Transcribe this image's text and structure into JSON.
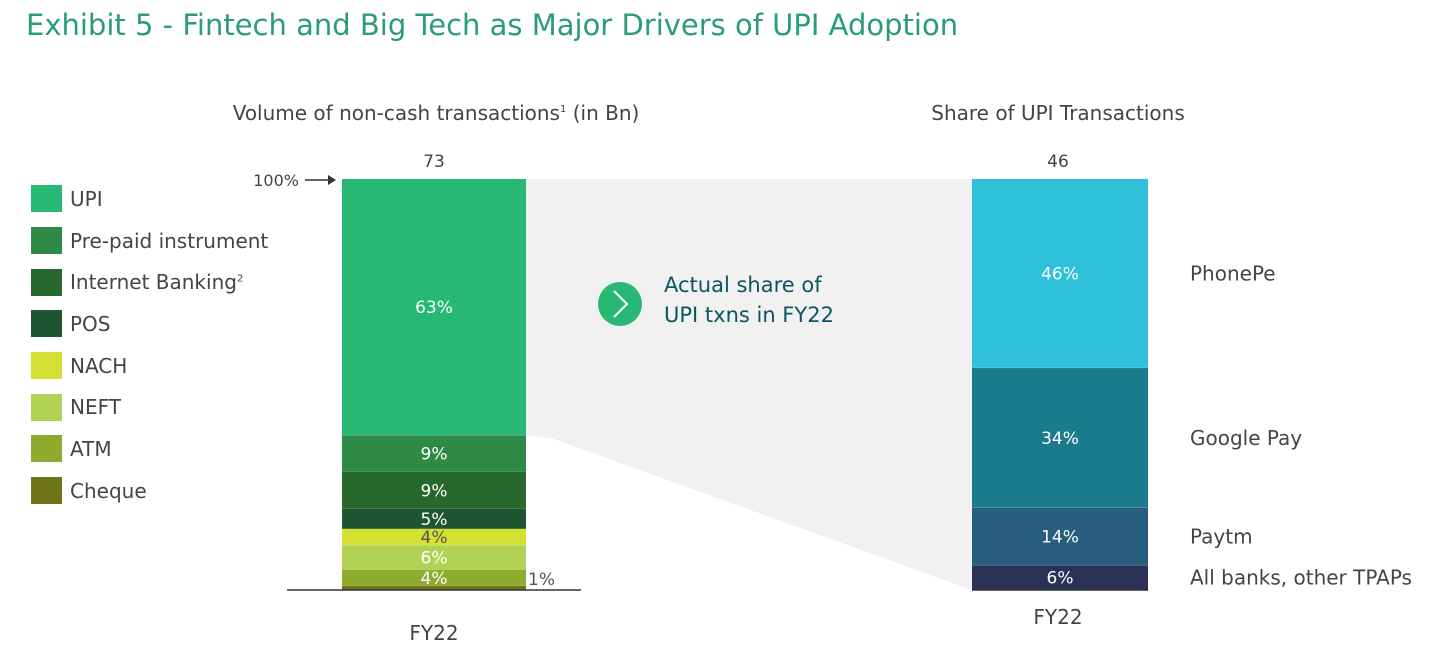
{
  "title": "Exhibit 5 - Fintech and Big Tech as Major Drivers of UPI Adoption",
  "callout": {
    "line1": "Actual share of",
    "line2": "UPI txns in FY22",
    "color": "#0b5560",
    "icon": "chevron-right-circle-icon"
  },
  "chart_data": [
    {
      "type": "bar",
      "stacked": true,
      "title": "Volume of non-cash transactions",
      "title_sup": "1",
      "title_suffix": " (in Bn)",
      "categories": [
        "FY22"
      ],
      "total_label": "73",
      "axis_marker": "100%",
      "series": [
        {
          "name": "UPI",
          "value": 63,
          "label": "63%",
          "color": "#27b973",
          "text_color": "#ffffff"
        },
        {
          "name": "Pre-paid instrument",
          "value": 9,
          "label": "9%",
          "color": "#2f8a47",
          "text_color": "#ffffff"
        },
        {
          "name": "Internet Banking",
          "sup": "2",
          "value": 9,
          "label": "9%",
          "color": "#27682c",
          "text_color": "#ffffff"
        },
        {
          "name": "POS",
          "value": 5,
          "label": "5%",
          "color": "#1f5530",
          "text_color": "#ffffff"
        },
        {
          "name": "NACH",
          "value": 4,
          "label": "4%",
          "color": "#d4e032",
          "text_color": "#555555"
        },
        {
          "name": "NEFT",
          "value": 6,
          "label": "6%",
          "color": "#b0d355",
          "text_color": "#ffffff"
        },
        {
          "name": "ATM",
          "value": 4,
          "label": "4%",
          "color": "#8fab2e",
          "text_color": "#ffffff"
        },
        {
          "name": "Cheque",
          "value": 1,
          "label": "1%",
          "color": "#6e7418",
          "text_color": "#555555",
          "label_outside": true
        }
      ]
    },
    {
      "type": "bar",
      "stacked": true,
      "title": "Share of UPI Transactions",
      "categories": [
        "FY22"
      ],
      "total_label": "46",
      "series": [
        {
          "name": "PhonePe",
          "value": 46,
          "label": "46%",
          "color": "#2ec1d9"
        },
        {
          "name": "Google Pay",
          "value": 34,
          "label": "34%",
          "color": "#1b7a8c"
        },
        {
          "name": "Paytm",
          "value": 14,
          "label": "14%",
          "color": "#275e7e"
        },
        {
          "name": "All banks, other TPAPs",
          "value": 6,
          "label": "6%",
          "color": "#2c3157"
        }
      ]
    }
  ]
}
